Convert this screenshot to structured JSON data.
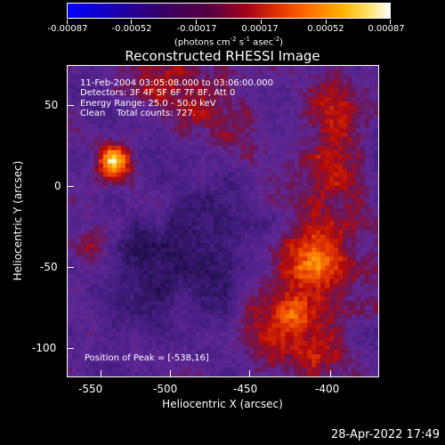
{
  "colorbar": {
    "labels": [
      "-0.00087",
      "-0.00052",
      "-0.00017",
      "0.00017",
      "0.00052",
      "0.00087"
    ]
  },
  "units": {
    "prefix": "(photons cm",
    "sup1": "-2",
    "mid1": " s",
    "sup2": "-1",
    "mid2": " asec",
    "sup3": "-2",
    "suffix": ")"
  },
  "title": "Reconstructed RHESSI Image",
  "overlay": {
    "time": "11-Feb-2004 03:05:08.000 to 03:06:00.000",
    "detectors": "Detectors: 3F 4F 5F 6F 7F 8F, Att 0",
    "energy": "Energy Range: 25.0 - 50.0 keV",
    "clean": "Clean    Total counts: 727.",
    "peak": "Position of Peak = [-538,16]"
  },
  "axes": {
    "xlabel": "Heliocentric X (arcsec)",
    "ylabel": "Heliocentric Y (arcsec)",
    "xticks": [
      "-550",
      "-500",
      "-450",
      "-400"
    ],
    "yticks": [
      "50",
      "0",
      "-50",
      "-100"
    ]
  },
  "timestamp": "28-Apr-2022 17:49",
  "colors": {
    "background": "#000000",
    "text": "#ffffff"
  }
}
